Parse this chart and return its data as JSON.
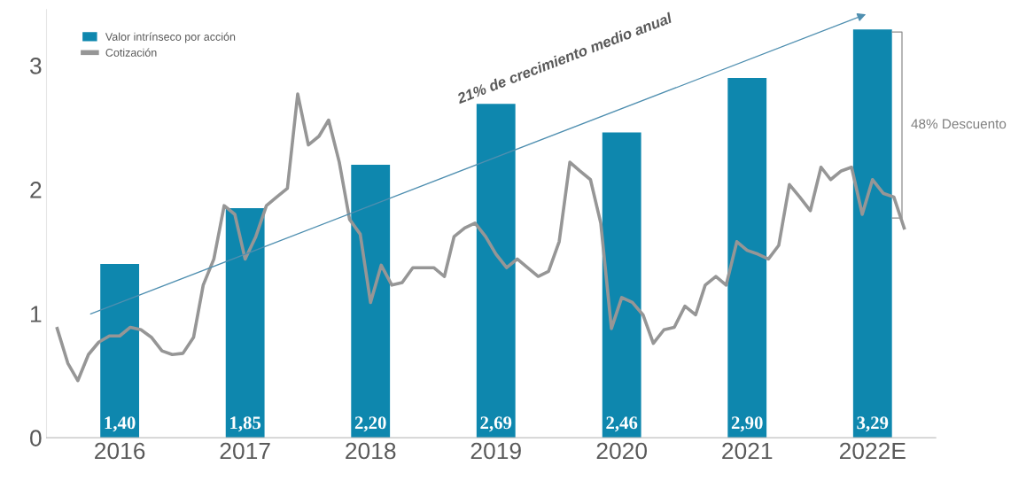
{
  "chart_data": {
    "type": "bar",
    "x": [
      "2016-07",
      "2017-07",
      "2018-07",
      "2019-07",
      "2020-07",
      "2021-07",
      "2022-07"
    ],
    "xlim": [
      "2015-12",
      "2023-01"
    ],
    "xticks": [
      {
        "value": "2016-07",
        "label": "2016"
      },
      {
        "value": "2017-07",
        "label": "2017"
      },
      {
        "value": "2018-07",
        "label": "2018"
      },
      {
        "value": "2019-07",
        "label": "2019"
      },
      {
        "value": "2020-07",
        "label": "2020"
      },
      {
        "value": "2021-07",
        "label": "2021"
      },
      {
        "value": "2022-07",
        "label": "2022E"
      }
    ],
    "ylim": [
      0,
      3.45
    ],
    "yticks": [
      0,
      1,
      2,
      3
    ],
    "grid": false,
    "legend": "top left",
    "annotations": [
      "21% de crecimiento medio anual",
      "48% Descuento"
    ],
    "series": [
      {
        "name": "Valor intrínseco por acción",
        "color": "#0e87ae",
        "values": [
          1.4,
          1.85,
          2.2,
          2.69,
          2.46,
          2.9,
          3.29
        ],
        "value_labels": [
          "1,40",
          "1,85",
          "2,20",
          "2,69",
          "2,46",
          "2,90",
          "3,29"
        ]
      },
      {
        "name": "Cotización",
        "type": "line",
        "color": "#969696",
        "marker": "none",
        "line_style": "solid",
        "x": [
          "2016-01",
          "2016-02",
          "2016-03",
          "2016-04",
          "2016-05",
          "2016-06",
          "2016-07",
          "2016-08",
          "2016-09",
          "2016-10",
          "2016-11",
          "2016-12",
          "2017-01",
          "2017-02",
          "2017-03",
          "2017-04",
          "2017-05",
          "2017-06",
          "2017-07",
          "2017-08",
          "2017-09",
          "2017-10",
          "2017-11",
          "2017-12",
          "2018-01",
          "2018-02",
          "2018-03",
          "2018-04",
          "2018-05",
          "2018-06",
          "2018-07",
          "2018-08",
          "2018-09",
          "2018-10",
          "2018-11",
          "2018-12",
          "2019-01",
          "2019-02",
          "2019-03",
          "2019-04",
          "2019-05",
          "2019-06",
          "2019-07",
          "2019-08",
          "2019-09",
          "2019-10",
          "2019-11",
          "2019-12",
          "2020-01",
          "2020-02",
          "2020-03",
          "2020-04",
          "2020-05",
          "2020-06",
          "2020-07",
          "2020-08",
          "2020-09",
          "2020-10",
          "2020-11",
          "2020-12",
          "2021-01",
          "2021-02",
          "2021-03",
          "2021-04",
          "2021-05",
          "2021-06",
          "2021-07",
          "2021-08",
          "2021-09",
          "2021-10",
          "2021-11",
          "2021-12",
          "2022-01",
          "2022-02",
          "2022-03",
          "2022-04",
          "2022-05",
          "2022-06",
          "2022-07",
          "2022-08",
          "2022-09",
          "2022-10"
        ],
        "values": [
          0.88,
          0.6,
          0.46,
          0.67,
          0.77,
          0.82,
          0.82,
          0.89,
          0.87,
          0.81,
          0.7,
          0.67,
          0.68,
          0.81,
          1.23,
          1.44,
          1.87,
          1.8,
          1.44,
          1.62,
          1.87,
          1.94,
          2.01,
          2.77,
          2.36,
          2.43,
          2.56,
          2.22,
          1.76,
          1.64,
          1.09,
          1.39,
          1.23,
          1.25,
          1.37,
          1.37,
          1.37,
          1.3,
          1.62,
          1.69,
          1.73,
          1.62,
          1.48,
          1.37,
          1.44,
          1.37,
          1.3,
          1.34,
          1.58,
          2.22,
          2.15,
          2.08,
          1.73,
          0.88,
          1.13,
          1.09,
          0.99,
          0.76,
          0.87,
          0.89,
          1.06,
          0.99,
          1.23,
          1.3,
          1.23,
          1.58,
          1.51,
          1.48,
          1.44,
          1.55,
          2.04,
          1.94,
          1.83,
          2.18,
          2.08,
          2.15,
          2.18,
          1.8,
          2.08,
          1.97,
          1.94,
          1.69
        ]
      }
    ]
  }
}
